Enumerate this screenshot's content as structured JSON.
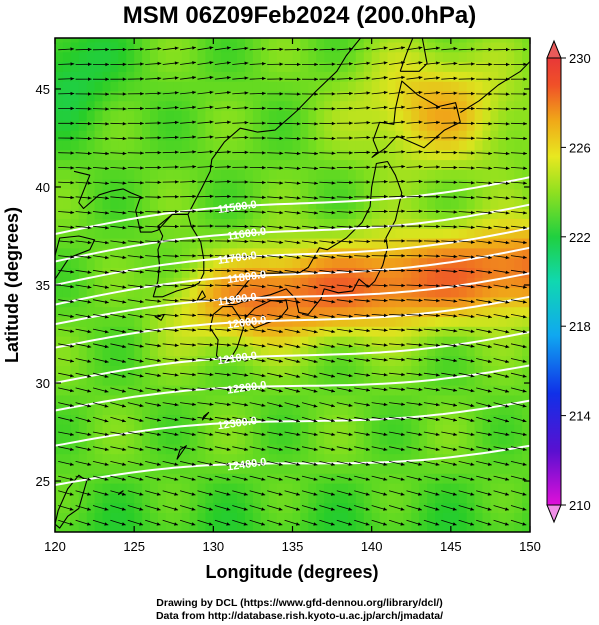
{
  "title": "MSM 06Z09Feb2024 (200.0hPa)",
  "credits": {
    "line1": "Drawing by DCL (https://www.gfd-dennou.org/library/dcl/)",
    "line2": "Data from http://database.rish.kyoto-u.ac.jp/arch/jmadata/"
  },
  "map": {
    "xlabel": "Longitude (degrees)",
    "ylabel": "Latitude  (degrees)",
    "xlim": [
      120,
      150
    ],
    "ylim": [
      22.4,
      47.6
    ],
    "xticks": [
      120,
      125,
      130,
      135,
      140,
      145,
      150
    ],
    "yticks": [
      25,
      30,
      35,
      40,
      45
    ],
    "field": "temperature (shaded), geopotential height (white contours), wind (arrows)",
    "colorbar": {
      "min": 210,
      "max": 230,
      "tick_labels": [
        "230",
        "226",
        "222",
        "218",
        "214",
        "210"
      ],
      "tick_values": [
        230,
        226,
        222,
        218,
        214,
        210
      ]
    },
    "height_contours": [
      {
        "label": "11500.0",
        "lat_at_120": 37.6,
        "slope": 0.1
      },
      {
        "label": "11600.0",
        "lat_at_120": 36.2,
        "slope": 0.1
      },
      {
        "label": "11700.0",
        "lat_at_120": 35.0,
        "slope": 0.1
      },
      {
        "label": "11800.0",
        "lat_at_120": 34.0,
        "slope": 0.1
      },
      {
        "label": "11900.0",
        "lat_at_120": 33.0,
        "slope": 0.09
      },
      {
        "label": "12000.0",
        "lat_at_120": 31.8,
        "slope": 0.09
      },
      {
        "label": "12100.0",
        "lat_at_120": 30.0,
        "slope": 0.09
      },
      {
        "label": "12200.0",
        "lat_at_120": 28.6,
        "slope": 0.08
      },
      {
        "label": "12300.0",
        "lat_at_120": 26.8,
        "slope": 0.08
      },
      {
        "label": "12400.0",
        "lat_at_120": 24.8,
        "slope": 0.07
      }
    ],
    "temperature_pattern": {
      "base": 222.5,
      "warm_core_lon": [
        130,
        150
      ],
      "warm_core_lat": [
        33.5,
        37.5
      ],
      "warm_core_max": 229.5,
      "cool_northwest": 221.0
    },
    "coast_color": "#000000",
    "contour_color": "#ffffff"
  }
}
